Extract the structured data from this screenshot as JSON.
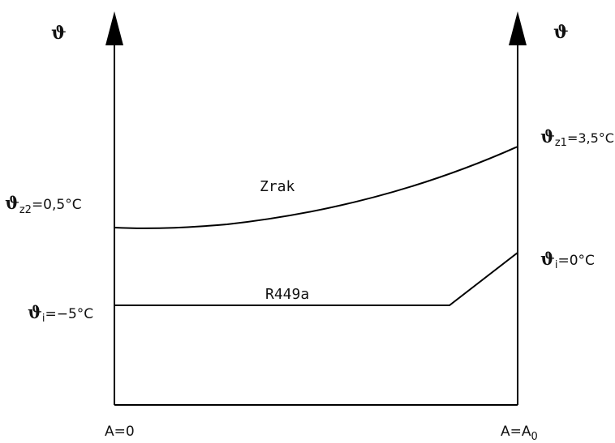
{
  "axes": {
    "left_symbol": "ϑ",
    "right_symbol": "ϑ",
    "origin_label": {
      "main": "A=0"
    },
    "end_label": {
      "main": "A=A",
      "sub": "0"
    }
  },
  "curves": {
    "air": {
      "name": "Zrak"
    },
    "refrigerant": {
      "name": "R449a"
    }
  },
  "temperatures": {
    "air_outlet": {
      "sym": "ϑ",
      "sub": "z2",
      "value": "=0,5°C"
    },
    "air_inlet": {
      "sym": "ϑ",
      "sub": "z1",
      "value": "=3,5°C"
    },
    "ref_evap": {
      "sym": "ϑ",
      "sub": "i",
      "value": "=−5°C"
    },
    "ref_out": {
      "sym": "ϑ",
      "sub": "i",
      "value": "=0°C"
    }
  },
  "colors": {
    "line": "#000000",
    "text": "#111111"
  }
}
